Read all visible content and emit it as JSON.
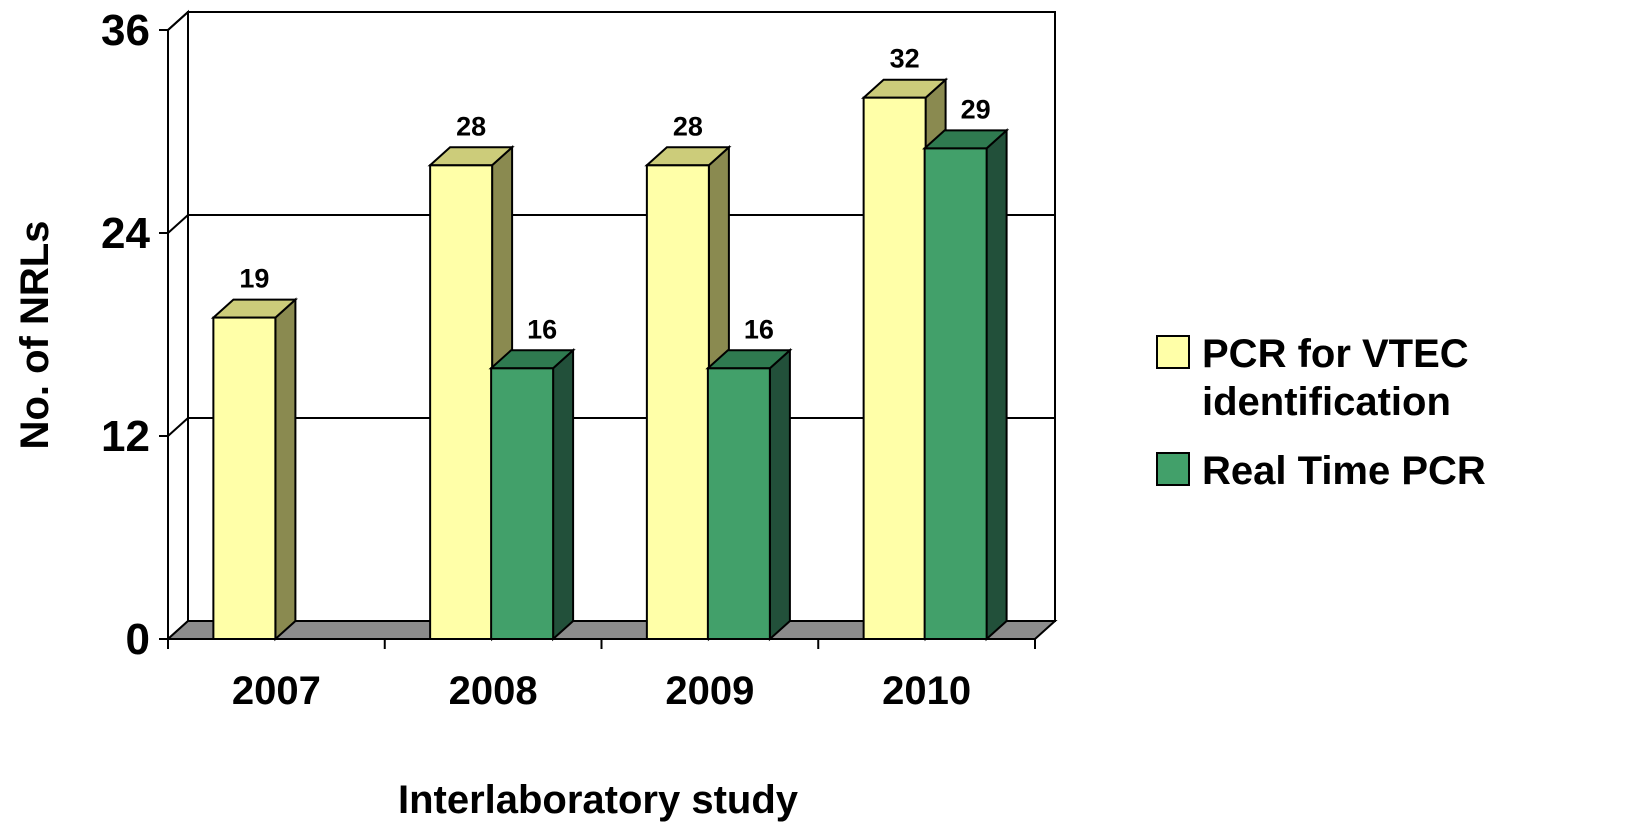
{
  "chart_data": {
    "type": "bar",
    "style": "3d-clustered-column",
    "categories": [
      "2007",
      "2008",
      "2009",
      "2010"
    ],
    "series": [
      {
        "name": "PCR for VTEC identification",
        "values": [
          19,
          28,
          28,
          32
        ],
        "color": "#ffffa8",
        "top_color": "#cccc7a",
        "side_color": "#8a8a50"
      },
      {
        "name": "Real Time PCR",
        "values": [
          null,
          16,
          16,
          29
        ],
        "color": "#42a06a",
        "top_color": "#2f7a50",
        "side_color": "#22503a"
      }
    ],
    "data_labels": [
      [
        "19",
        "28",
        "28",
        "32"
      ],
      [
        "",
        "16",
        "16",
        "29"
      ]
    ],
    "title": "",
    "xlabel": "Interlaboratory study",
    "ylabel": "No. of NRLs",
    "ylim": [
      0,
      36
    ],
    "yticks": [
      "0",
      "12",
      "24",
      "36"
    ],
    "ytick_values": [
      0,
      12,
      24,
      36
    ],
    "grid": true,
    "legend": {
      "position": "right",
      "entries": [
        {
          "lines": [
            "PCR for VTEC",
            "identification"
          ]
        },
        {
          "lines": [
            "Real Time PCR"
          ]
        }
      ]
    }
  }
}
